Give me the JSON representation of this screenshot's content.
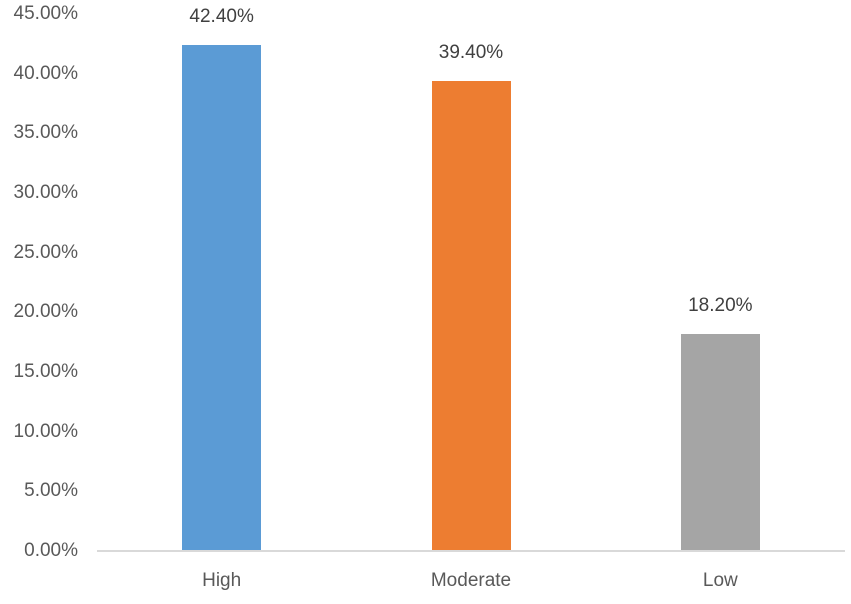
{
  "chart_data": {
    "type": "bar",
    "title": "",
    "xlabel": "",
    "ylabel": "",
    "categories": [
      "High",
      "Moderate",
      "Low"
    ],
    "values": [
      42.4,
      39.4,
      18.2
    ],
    "value_labels": [
      "42.40%",
      "39.40%",
      "18.20%"
    ],
    "bar_colors": [
      "#5B9BD5",
      "#ED7D31",
      "#A5A5A5"
    ],
    "ylim": [
      0,
      45
    ],
    "ytick_step": 5,
    "ytick_labels": [
      "0.00%",
      "5.00%",
      "10.00%",
      "15.00%",
      "20.00%",
      "25.00%",
      "30.00%",
      "35.00%",
      "40.00%",
      "45.00%"
    ],
    "grid": false,
    "legend": "none"
  },
  "colors": {
    "axis_line": "#D9D9D9",
    "tick_label_color": "#595959",
    "value_label_color": "#404040",
    "background": "#FFFFFF"
  }
}
